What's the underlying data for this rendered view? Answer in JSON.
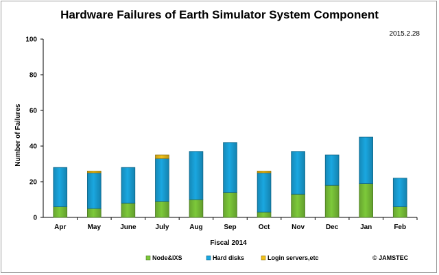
{
  "chart_data": {
    "type": "bar",
    "stacked": true,
    "title": "Hardware Failures of Earth Simulator System Component",
    "subtitle": "2015.2.28",
    "xlabel": "Fiscal 2014",
    "ylabel": "Number of Failures",
    "ylim": [
      0,
      100
    ],
    "yticks": [
      0,
      20,
      40,
      60,
      80,
      100
    ],
    "grid": false,
    "legend_position": "bottom",
    "categories": [
      "Apr",
      "May",
      "June",
      "July",
      "Aug",
      "Sep",
      "Oct",
      "Nov",
      "Dec",
      "Jan",
      "Feb"
    ],
    "series": [
      {
        "name": "Node&IXS",
        "color": "#7dc93a",
        "values": [
          6,
          5,
          8,
          9,
          10,
          14,
          3,
          13,
          18,
          19,
          6
        ]
      },
      {
        "name": "Hard disks",
        "color": "#1aa7e0",
        "values": [
          22,
          20,
          20,
          24,
          27,
          28,
          22,
          24,
          17,
          26,
          16
        ]
      },
      {
        "name": "Login servers,etc",
        "color": "#f2c21a",
        "values": [
          0,
          1,
          0,
          2,
          0,
          0,
          1,
          0,
          0,
          0,
          0
        ]
      }
    ]
  },
  "credit": "© JAMSTEC"
}
